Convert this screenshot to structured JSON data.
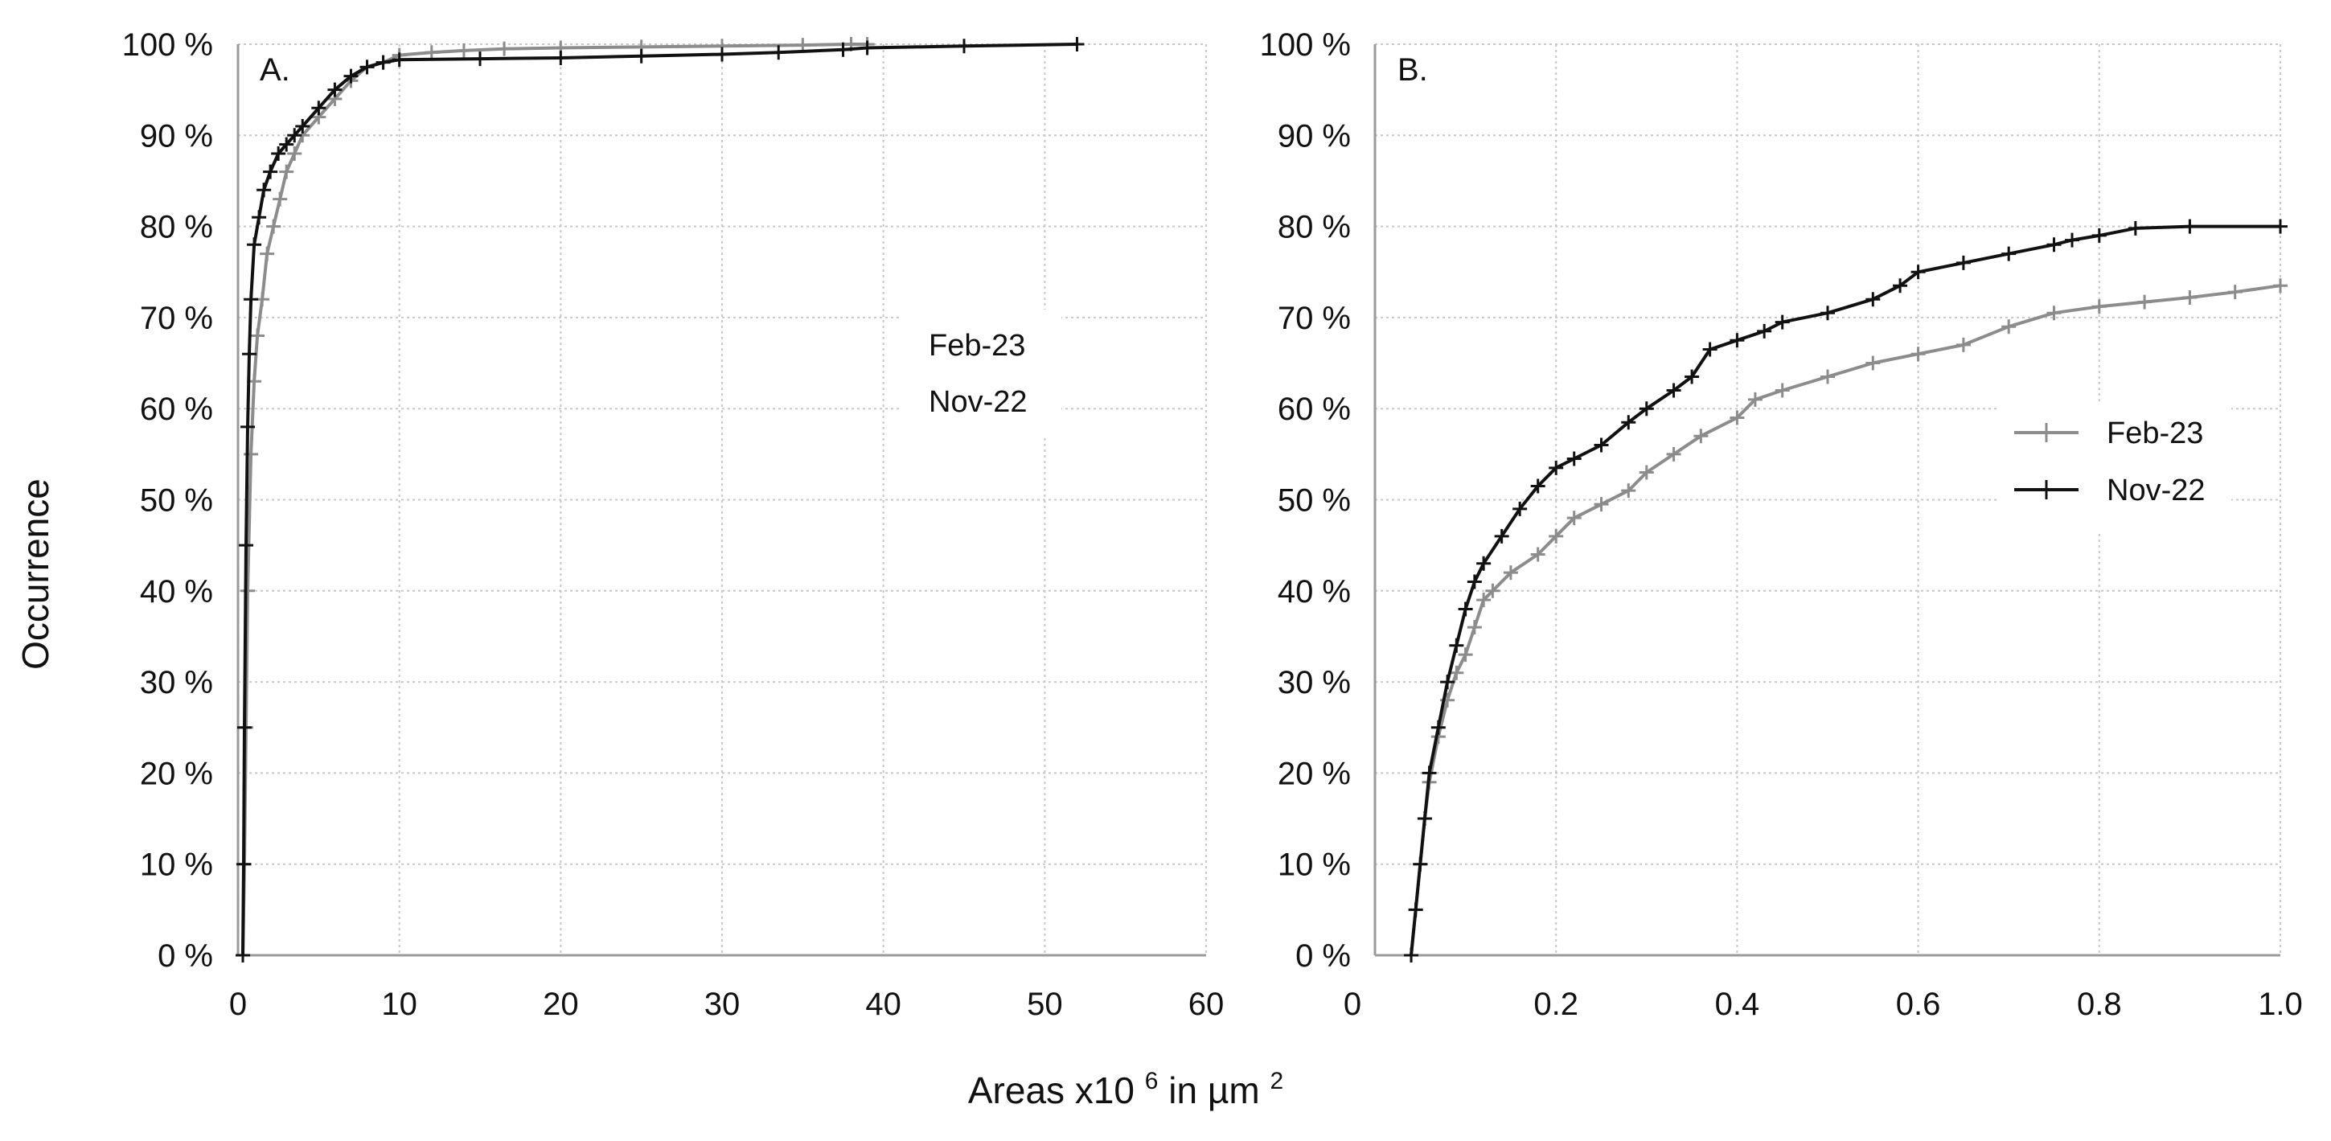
{
  "figure": {
    "shared_xlabel": "Areas x10",
    "shared_xlabel_sup": "6",
    "shared_xlabel_unit": " in µm",
    "shared_xlabel_unit_sup": "2",
    "shared_ylabel": "Occurrence"
  },
  "colors": {
    "feb23": "#8c8c8c",
    "nov22": "#111111"
  },
  "chart_data": [
    {
      "type": "line",
      "panel": "A.",
      "xlabel": "Areas x10^6 in µm^2",
      "ylabel": "Occurrence",
      "xlim": [
        0,
        60
      ],
      "ylim": [
        0,
        100
      ],
      "xticks": [
        "0",
        "10",
        "20",
        "30",
        "40",
        "50",
        "60"
      ],
      "yticks": [
        "0 %",
        "10 %",
        "20 %",
        "30 %",
        "40 %",
        "50 %",
        "60 %",
        "70 %",
        "80 %",
        "90 %",
        "100 %"
      ],
      "grid": true,
      "legend": [
        "Feb-23",
        "Nov-22"
      ],
      "legend_position": "right",
      "series": [
        {
          "name": "Feb-23",
          "color": "#8c8c8c",
          "x": [
            0.3,
            0.4,
            0.5,
            0.6,
            0.8,
            1.0,
            1.2,
            1.5,
            1.8,
            2.2,
            2.6,
            3.0,
            3.5,
            4.0,
            5.0,
            6.0,
            7.0,
            8.0,
            9.0,
            10.0,
            12.0,
            14.0,
            16.5,
            20.0,
            25.0,
            30.0,
            35.0,
            38.0,
            39.0
          ],
          "y": [
            0,
            10,
            25,
            40,
            55,
            63,
            68,
            72,
            77,
            80,
            83,
            86,
            88,
            90,
            92,
            94,
            96,
            97.5,
            98,
            98.8,
            99.1,
            99.3,
            99.5,
            99.6,
            99.7,
            99.8,
            99.9,
            100,
            100
          ]
        },
        {
          "name": "Nov-22",
          "color": "#111111",
          "x": [
            0.3,
            0.35,
            0.4,
            0.5,
            0.6,
            0.7,
            0.8,
            1.0,
            1.3,
            1.6,
            2.0,
            2.5,
            3.0,
            3.5,
            4.0,
            5.0,
            6.0,
            7.0,
            8.0,
            9.0,
            10.0,
            15.0,
            20.0,
            25.0,
            30.0,
            33.5,
            37.5,
            39.0,
            45.0,
            52.0
          ],
          "y": [
            0,
            10,
            25,
            45,
            58,
            66,
            72,
            78,
            81,
            84,
            86,
            88,
            89,
            90,
            91,
            93,
            95,
            96.5,
            97.5,
            98,
            98.3,
            98.4,
            98.5,
            98.7,
            98.9,
            99.1,
            99.4,
            99.6,
            99.8,
            100
          ]
        }
      ]
    },
    {
      "type": "line",
      "panel": "B.",
      "xlabel": "Areas x10^6 in µm^2",
      "ylabel": "Occurrence",
      "xlim": [
        0,
        1.0
      ],
      "ylim": [
        0,
        100
      ],
      "xticks": [
        "0",
        "0.2",
        "0.4",
        "0.6",
        "0.8",
        "1.0"
      ],
      "yticks": [
        "0 %",
        "10 %",
        "20 %",
        "30 %",
        "40 %",
        "50 %",
        "60 %",
        "70 %",
        "80 %",
        "90 %",
        "100 %"
      ],
      "grid": true,
      "legend": [
        "Feb-23",
        "Nov-22"
      ],
      "legend_position": "right",
      "series": [
        {
          "name": "Feb-23",
          "color": "#8c8c8c",
          "x": [
            0.04,
            0.045,
            0.05,
            0.055,
            0.06,
            0.07,
            0.08,
            0.09,
            0.1,
            0.11,
            0.12,
            0.13,
            0.15,
            0.18,
            0.2,
            0.22,
            0.25,
            0.28,
            0.3,
            0.33,
            0.36,
            0.4,
            0.42,
            0.45,
            0.5,
            0.55,
            0.6,
            0.65,
            0.7,
            0.75,
            0.8,
            0.85,
            0.9,
            0.95,
            1.0
          ],
          "y": [
            0,
            5,
            10,
            15,
            19,
            24,
            28,
            31,
            33,
            36,
            39,
            40,
            42,
            44,
            46,
            48,
            49.5,
            51,
            53,
            55,
            57,
            59,
            61,
            62,
            63.5,
            65,
            66,
            67,
            69,
            70.5,
            71.2,
            71.7,
            72.2,
            72.8,
            73.5
          ]
        },
        {
          "name": "Nov-22",
          "color": "#111111",
          "x": [
            0.04,
            0.045,
            0.05,
            0.055,
            0.06,
            0.07,
            0.08,
            0.09,
            0.1,
            0.11,
            0.12,
            0.14,
            0.16,
            0.18,
            0.2,
            0.22,
            0.25,
            0.28,
            0.3,
            0.33,
            0.35,
            0.37,
            0.4,
            0.43,
            0.45,
            0.5,
            0.55,
            0.58,
            0.6,
            0.65,
            0.7,
            0.75,
            0.77,
            0.8,
            0.84,
            0.9,
            1.0
          ],
          "y": [
            0,
            5,
            10,
            15,
            20,
            25,
            30,
            34,
            38,
            41,
            43,
            46,
            49,
            51.5,
            53.5,
            54.5,
            56,
            58.5,
            60,
            62,
            63.5,
            66.5,
            67.5,
            68.5,
            69.5,
            70.5,
            72,
            73.5,
            75,
            76,
            77,
            78,
            78.5,
            79,
            79.8,
            80,
            80
          ]
        }
      ]
    }
  ]
}
